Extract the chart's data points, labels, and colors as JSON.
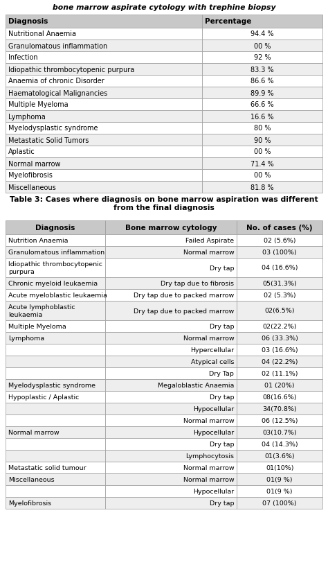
{
  "title1": "bone marrow aspirate cytology with trephine biopsy",
  "table1_headers": [
    "Diagnosis",
    "Percentage"
  ],
  "table1_rows": [
    [
      "Nutritional Anaemia",
      "94.4 %"
    ],
    [
      "Granulomatous inflammation",
      "00 %"
    ],
    [
      "Infection",
      "92 %"
    ],
    [
      "Idiopathic thrombocytopenic purpura",
      "83.3 %"
    ],
    [
      "Anaemia of chronic Disorder",
      "86.6 %"
    ],
    [
      "Haematological Malignancies",
      "89.9 %"
    ],
    [
      "Multiple Myeloma",
      "66.6 %"
    ],
    [
      "Lymphoma",
      "16.6 %"
    ],
    [
      "Myelodysplastic syndrome",
      "80 %"
    ],
    [
      "Metastatic Solid Tumors",
      "90 %"
    ],
    [
      "Aplastic",
      "00 %"
    ],
    [
      "Normal marrow",
      "71.4 %"
    ],
    [
      "Myelofibrosis",
      "00 %"
    ],
    [
      "Miscellaneous",
      "81.8 %"
    ]
  ],
  "caption1": "Table 3: Cases where diagnosis on bone marrow aspiration was different\nfrom the final diagnosis",
  "table2_headers": [
    "Diagnosis",
    "Bone marrow cytology",
    "No. of cases (%)"
  ],
  "table2_rows": [
    [
      "Nutrition Anaemia",
      "Failed Aspirate",
      "02 (5.6%)"
    ],
    [
      "Granulomatous inflammation",
      "Normal marrow",
      "03 (100%)"
    ],
    [
      "Idiopathic thrombocytopenic\npurpura",
      "Dry tap",
      "04 (16.6%)"
    ],
    [
      "Chronic myeloid leukaemia",
      "Dry tap due to fibrosis",
      "05(31.3%)"
    ],
    [
      "Acute myeloblastic leukaemia",
      "Dry tap due to packed marrow",
      "02 (5.3%)"
    ],
    [
      "Acute lymphoblastic\nleukaemia",
      "Dry tap due to packed marrow",
      "02(6.5%)"
    ],
    [
      "Multiple Myeloma",
      "Dry tap",
      "02(22.2%)"
    ],
    [
      "Lymphoma",
      "Normal marrow",
      "06 (33.3%)"
    ],
    [
      "",
      "Hypercellular",
      "03 (16.6%)"
    ],
    [
      "",
      "Atypical cells",
      "04 (22.2%)"
    ],
    [
      "",
      "Dry Tap",
      "02 (11.1%)"
    ],
    [
      "Myelodysplastic syndrome",
      "Megaloblastic Anaemia",
      "01 (20%)"
    ],
    [
      "Hypoplastic / Aplastic",
      "Dry tap",
      "08(16.6%)"
    ],
    [
      "",
      "Hypocellular",
      "34(70.8%)"
    ],
    [
      "",
      "Normal marrow",
      "06 (12.5%)"
    ],
    [
      "Normal marrow",
      "Hypocellular",
      "03(10.7%)"
    ],
    [
      "",
      "Dry tap",
      "04 (14.3%)"
    ],
    [
      "",
      "Lymphocytosis",
      "01(3.6%)"
    ],
    [
      "Metastatic solid tumour",
      "Normal marrow",
      "01(10%)"
    ],
    [
      "Miscellaneous",
      "Normal marrow",
      "01(9 %)"
    ],
    [
      "",
      "Hypocellular",
      "01(9 %)"
    ],
    [
      "Myelofibrosis",
      "Dry tap",
      "07 (100%)"
    ]
  ],
  "header_bg": "#c8c8c8",
  "row_bg_white": "#ffffff",
  "row_bg_gray": "#eeeeee",
  "text_color": "#000000",
  "border_color": "#999999",
  "fig_width": 4.74,
  "fig_height": 8.45,
  "dpi": 100
}
